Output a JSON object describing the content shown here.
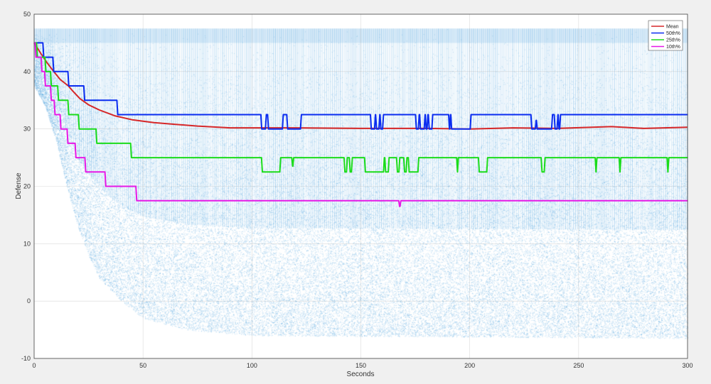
{
  "chart_data": {
    "type": "line",
    "title": "",
    "xlabel": "Seconds",
    "ylabel": "Defense",
    "xlim": [
      0,
      300
    ],
    "ylim": [
      -10,
      50
    ],
    "xticks": [
      0,
      50,
      100,
      150,
      200,
      250,
      300
    ],
    "yticks": [
      -10,
      0,
      10,
      20,
      30,
      40,
      50
    ],
    "grid": true,
    "legend_position": "top-right",
    "background_scatter": {
      "color": "#4da3e0",
      "upper_bound": 47.5,
      "lower_envelope": [
        [
          0,
          37.5
        ],
        [
          5,
          34
        ],
        [
          10,
          28
        ],
        [
          15,
          20
        ],
        [
          20,
          13
        ],
        [
          25,
          8
        ],
        [
          30,
          4
        ],
        [
          40,
          0
        ],
        [
          50,
          -3
        ],
        [
          70,
          -5
        ],
        [
          100,
          -6
        ],
        [
          300,
          -6.5
        ]
      ]
    },
    "series": [
      {
        "name": "Mean",
        "color": "#d62728",
        "kind": "line",
        "points": [
          [
            0,
            45
          ],
          [
            3,
            43.2
          ],
          [
            6,
            41.5
          ],
          [
            9,
            40
          ],
          [
            12,
            38.6
          ],
          [
            15.7,
            37.5
          ],
          [
            18,
            36.5
          ],
          [
            21,
            35.3
          ],
          [
            25,
            34.2
          ],
          [
            30,
            33.3
          ],
          [
            37,
            32.3
          ],
          [
            45,
            31.6
          ],
          [
            55,
            31.1
          ],
          [
            65,
            30.8
          ],
          [
            75,
            30.5
          ],
          [
            90,
            30.2
          ],
          [
            120,
            30.2
          ],
          [
            150,
            30.1
          ],
          [
            180,
            30.1
          ],
          [
            200,
            30.0
          ],
          [
            220,
            30.2
          ],
          [
            240,
            30.1
          ],
          [
            265,
            30.4
          ],
          [
            280,
            30.1
          ],
          [
            300,
            30.3
          ]
        ]
      },
      {
        "name": "50th%",
        "color": "#0a2cf0",
        "kind": "step",
        "points": [
          [
            0,
            45
          ],
          [
            4.2,
            42.5
          ],
          [
            8.8,
            40
          ],
          [
            15.7,
            37.5
          ],
          [
            23,
            35
          ],
          [
            38.2,
            32.5
          ],
          [
            104.3,
            30
          ],
          [
            106.4,
            32.5
          ],
          [
            107.4,
            30
          ],
          [
            114.2,
            32.5
          ],
          [
            116.2,
            30
          ],
          [
            122.5,
            32.5
          ],
          [
            154.6,
            30
          ],
          [
            156.5,
            32.5
          ],
          [
            157,
            30
          ],
          [
            158.5,
            32.5
          ],
          [
            159,
            30
          ],
          [
            160.2,
            32.5
          ],
          [
            175.3,
            30
          ],
          [
            176.6,
            32.5
          ],
          [
            177.2,
            30
          ],
          [
            179.3,
            32.5
          ],
          [
            179.8,
            30
          ],
          [
            180.6,
            32.5
          ],
          [
            181.2,
            30
          ],
          [
            182.8,
            32.5
          ],
          [
            190.5,
            30
          ],
          [
            191,
            32.5
          ],
          [
            191.5,
            30
          ],
          [
            200.4,
            32.5
          ],
          [
            228.3,
            30
          ],
          [
            230.3,
            31.5
          ],
          [
            230.8,
            30
          ],
          [
            237.8,
            32.5
          ],
          [
            239,
            30
          ],
          [
            240.3,
            32.5
          ],
          [
            240.8,
            30
          ],
          [
            241.5,
            32.5
          ],
          [
            300,
            32.5
          ]
        ]
      },
      {
        "name": "25th%",
        "color": "#1bdc1b",
        "kind": "step",
        "points": [
          [
            0,
            45
          ],
          [
            1.3,
            42.5
          ],
          [
            5.2,
            40
          ],
          [
            7.7,
            37.5
          ],
          [
            11,
            35
          ],
          [
            15.7,
            32.5
          ],
          [
            20.5,
            30
          ],
          [
            28.6,
            27.5
          ],
          [
            44.5,
            25
          ],
          [
            104.6,
            22.5
          ],
          [
            113,
            25
          ],
          [
            118.5,
            23.5
          ],
          [
            119,
            25
          ],
          [
            142.5,
            22.5
          ],
          [
            143.6,
            25
          ],
          [
            144.9,
            22.5
          ],
          [
            145.9,
            25
          ],
          [
            151.9,
            22.5
          ],
          [
            160.6,
            25
          ],
          [
            161.2,
            22.5
          ],
          [
            162.8,
            25
          ],
          [
            166.6,
            22.5
          ],
          [
            167.7,
            25
          ],
          [
            169.9,
            22.5
          ],
          [
            171,
            25
          ],
          [
            172,
            22.5
          ],
          [
            176.4,
            25
          ],
          [
            194.2,
            22.5
          ],
          [
            194.6,
            25
          ],
          [
            204.2,
            22.5
          ],
          [
            208,
            25
          ],
          [
            233,
            22.5
          ],
          [
            234.4,
            25
          ],
          [
            257.8,
            22.5
          ],
          [
            258.2,
            25
          ],
          [
            268.8,
            22.5
          ],
          [
            269.2,
            25
          ],
          [
            290.8,
            22.5
          ],
          [
            291.2,
            25
          ],
          [
            300,
            25
          ]
        ]
      },
      {
        "name": "10th%",
        "color": "#e619e6",
        "kind": "step",
        "points": [
          [
            0,
            45
          ],
          [
            0.65,
            42.5
          ],
          [
            3.4,
            40
          ],
          [
            5,
            37.5
          ],
          [
            7.7,
            35
          ],
          [
            9.4,
            32.5
          ],
          [
            12.1,
            30
          ],
          [
            15.3,
            27.5
          ],
          [
            19,
            25
          ],
          [
            23.5,
            22.5
          ],
          [
            32.7,
            20
          ],
          [
            46.9,
            17.5
          ],
          [
            167.6,
            16.5
          ],
          [
            168.2,
            17.5
          ],
          [
            300,
            17.5
          ]
        ]
      }
    ]
  }
}
